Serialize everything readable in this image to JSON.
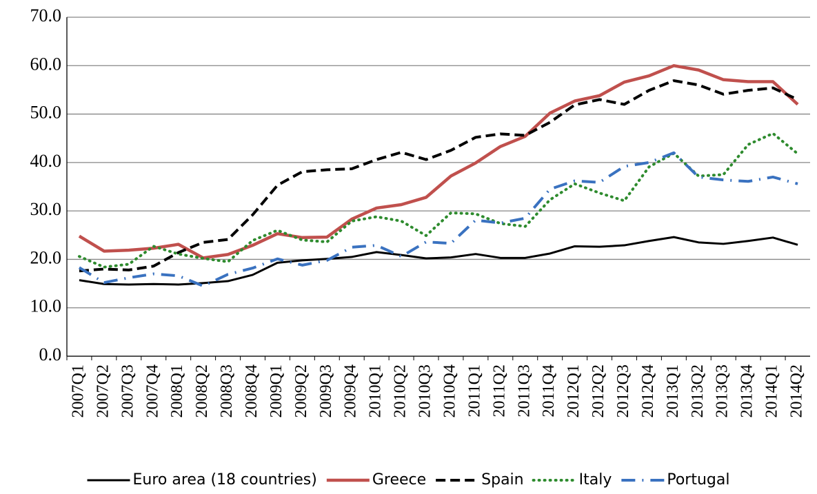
{
  "chart_data": {
    "type": "line",
    "categories": [
      "2007Q1",
      "2007Q2",
      "2007Q3",
      "2007Q4",
      "2008Q1",
      "2008Q2",
      "2008Q3",
      "2008Q4",
      "2009Q1",
      "2009Q2",
      "2009Q3",
      "2009Q4",
      "2010Q1",
      "2010Q2",
      "2010Q3",
      "2010Q4",
      "2011Q1",
      "2011Q2",
      "2011Q3",
      "2011Q4",
      "2012Q1",
      "2012Q2",
      "2012Q3",
      "2012Q4",
      "2013Q1",
      "2013Q2",
      "2013Q3",
      "2013Q4",
      "2014Q1",
      "2014Q2"
    ],
    "series": [
      {
        "name": "Euro area (18 countries)",
        "color": "#000000",
        "dash": "solid",
        "values": [
          15.7,
          14.9,
          14.8,
          14.9,
          14.8,
          15.1,
          15.5,
          16.8,
          19.3,
          19.8,
          20.1,
          20.5,
          21.5,
          20.9,
          20.2,
          20.4,
          21.1,
          20.3,
          20.3,
          21.2,
          22.7,
          22.6,
          22.9,
          23.8,
          24.6,
          23.5,
          23.2,
          23.8,
          24.5,
          23.0
        ]
      },
      {
        "name": "Greece",
        "color": "#c0504d",
        "dash": "solid",
        "values": [
          24.8,
          21.7,
          21.9,
          22.3,
          23.1,
          20.3,
          21.0,
          22.9,
          25.3,
          24.5,
          24.6,
          28.3,
          30.6,
          31.3,
          32.8,
          37.2,
          39.9,
          43.3,
          45.4,
          50.2,
          52.7,
          53.8,
          56.6,
          57.9,
          60.0,
          59.1,
          57.1,
          56.7,
          56.7,
          52.0
        ]
      },
      {
        "name": "Spain",
        "color": "#000000",
        "dash": "dashed",
        "values": [
          17.6,
          18.0,
          17.8,
          18.6,
          21.4,
          23.5,
          24.1,
          29.2,
          35.3,
          38.1,
          38.5,
          38.7,
          40.6,
          42.1,
          40.6,
          42.5,
          45.2,
          45.9,
          45.6,
          48.3,
          51.9,
          53.0,
          52.0,
          54.9,
          56.9,
          56.0,
          54.1,
          54.9,
          55.4,
          53.0
        ]
      },
      {
        "name": "Italy",
        "color": "#2e8b2e",
        "dash": "dotted",
        "values": [
          20.6,
          18.4,
          19.0,
          22.7,
          21.1,
          20.2,
          19.5,
          23.9,
          26.0,
          24.0,
          23.6,
          27.9,
          28.8,
          27.9,
          24.9,
          29.6,
          29.4,
          27.4,
          26.8,
          32.3,
          35.6,
          33.7,
          32.1,
          39.1,
          41.9,
          37.2,
          37.5,
          43.7,
          46.0,
          41.8
        ]
      },
      {
        "name": "Portugal",
        "color": "#3a72c0",
        "dash": "dashdot",
        "values": [
          18.3,
          15.2,
          16.2,
          17.0,
          16.6,
          14.5,
          16.9,
          18.2,
          20.1,
          18.8,
          19.8,
          22.5,
          22.9,
          20.6,
          23.6,
          23.3,
          28.1,
          27.5,
          28.5,
          34.5,
          36.2,
          35.9,
          39.2,
          40.0,
          42.0,
          37.0,
          36.4,
          36.1,
          37.0,
          35.6
        ]
      }
    ],
    "ylim": [
      0,
      70
    ],
    "yticks": [
      {
        "value": 0,
        "label": "0.0"
      },
      {
        "value": 10,
        "label": "10.0"
      },
      {
        "value": 20,
        "label": "20.0"
      },
      {
        "value": 30,
        "label": "30.0"
      },
      {
        "value": 40,
        "label": "40.0"
      },
      {
        "value": 50,
        "label": "50.0"
      },
      {
        "value": 60,
        "label": "60.0"
      },
      {
        "value": 70,
        "label": "70.0"
      }
    ],
    "grid": true,
    "legend": "bottom"
  }
}
